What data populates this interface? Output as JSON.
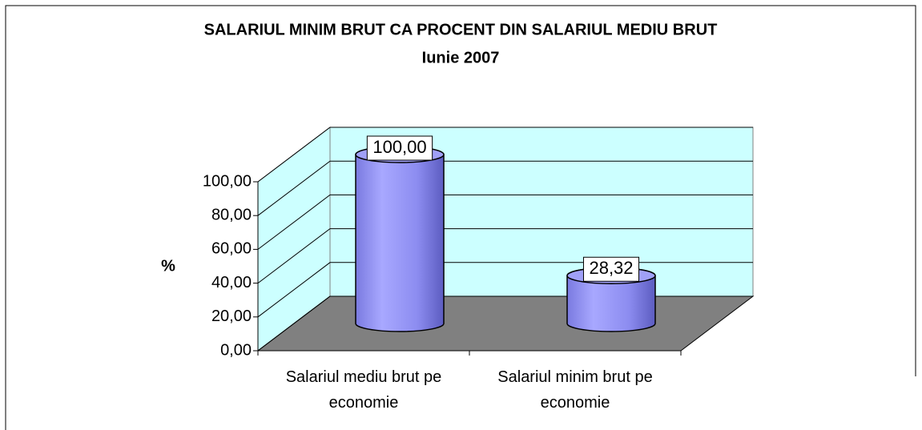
{
  "chart_data": {
    "type": "bar3d",
    "title": "SALARIUL MINIM BRUT CA PROCENT DIN SALARIUL MEDIU BRUT",
    "subtitle": "Iunie 2007",
    "y_label": "%",
    "categories": [
      "Salariul mediu brut pe economie",
      "Salariul minim brut pe economie"
    ],
    "values": [
      100,
      28.32
    ],
    "value_labels": [
      "100,00",
      "28,32"
    ],
    "color": "#9999ff",
    "ylim": [
      0,
      100
    ],
    "yticks": [
      {
        "value": 0,
        "label": "0,00"
      },
      {
        "value": 20,
        "label": "20,00"
      },
      {
        "value": 40,
        "label": "40,00"
      },
      {
        "value": 60,
        "label": "60,00"
      },
      {
        "value": 80,
        "label": "80,00"
      },
      {
        "value": 100,
        "label": "100,00"
      }
    ],
    "grid": true
  }
}
